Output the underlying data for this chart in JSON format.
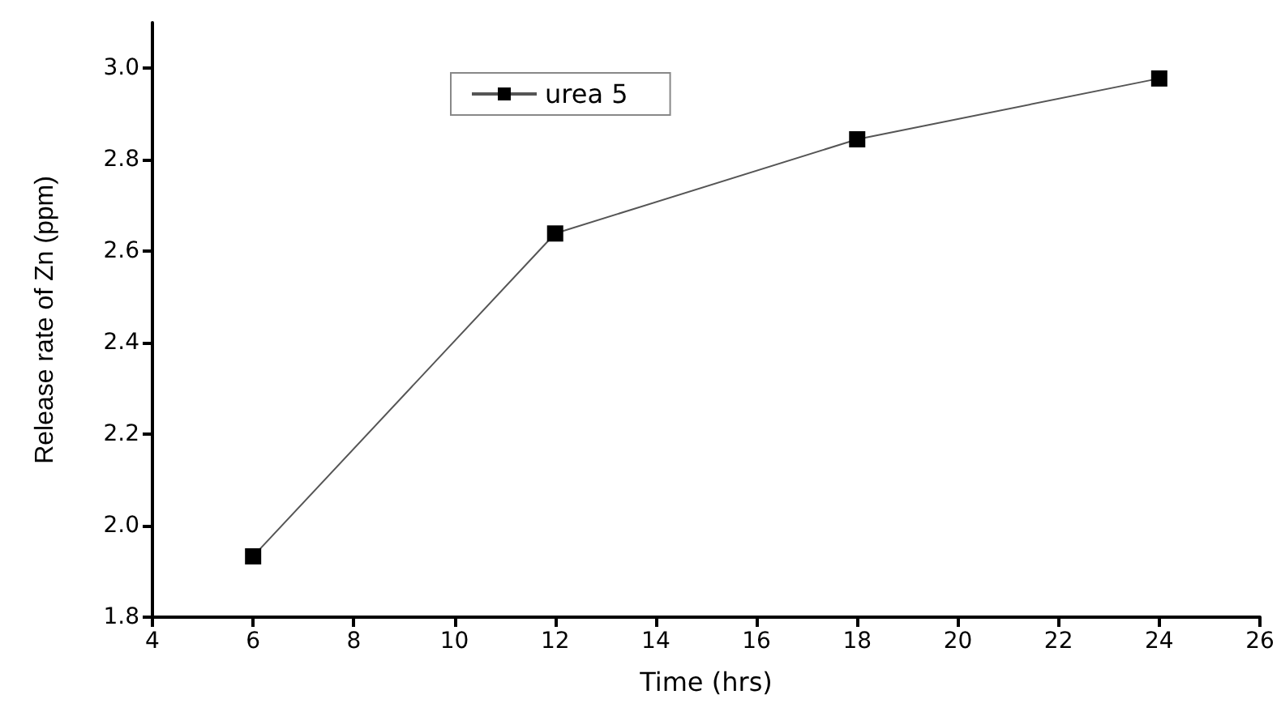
{
  "chart_data": {
    "type": "line",
    "xlabel": "Time (hrs)",
    "ylabel": "Release rate of Zn (ppm)",
    "x": [
      6,
      12,
      18,
      24
    ],
    "series": [
      {
        "name": "urea 5",
        "color": "#000000",
        "values": [
          1.933,
          2.639,
          2.845,
          2.978
        ]
      }
    ],
    "xlim": [
      4,
      26
    ],
    "xticks": [
      4,
      6,
      8,
      10,
      12,
      14,
      16,
      18,
      20,
      22,
      24,
      26
    ],
    "ylim": [
      1.8,
      3.1
    ],
    "yticks": [
      {
        "value": 1.8,
        "label": "1.8"
      },
      {
        "value": 2.0,
        "label": "2.0"
      },
      {
        "value": 2.2,
        "label": "2.2"
      },
      {
        "value": 2.4,
        "label": "2.4"
      },
      {
        "value": 2.6,
        "label": "2.6"
      },
      {
        "value": 2.8,
        "label": "2.8"
      },
      {
        "value": 3.0,
        "label": "3.0"
      }
    ],
    "grid": false,
    "legend": "top",
    "marker": "square",
    "line_style": "solid"
  }
}
